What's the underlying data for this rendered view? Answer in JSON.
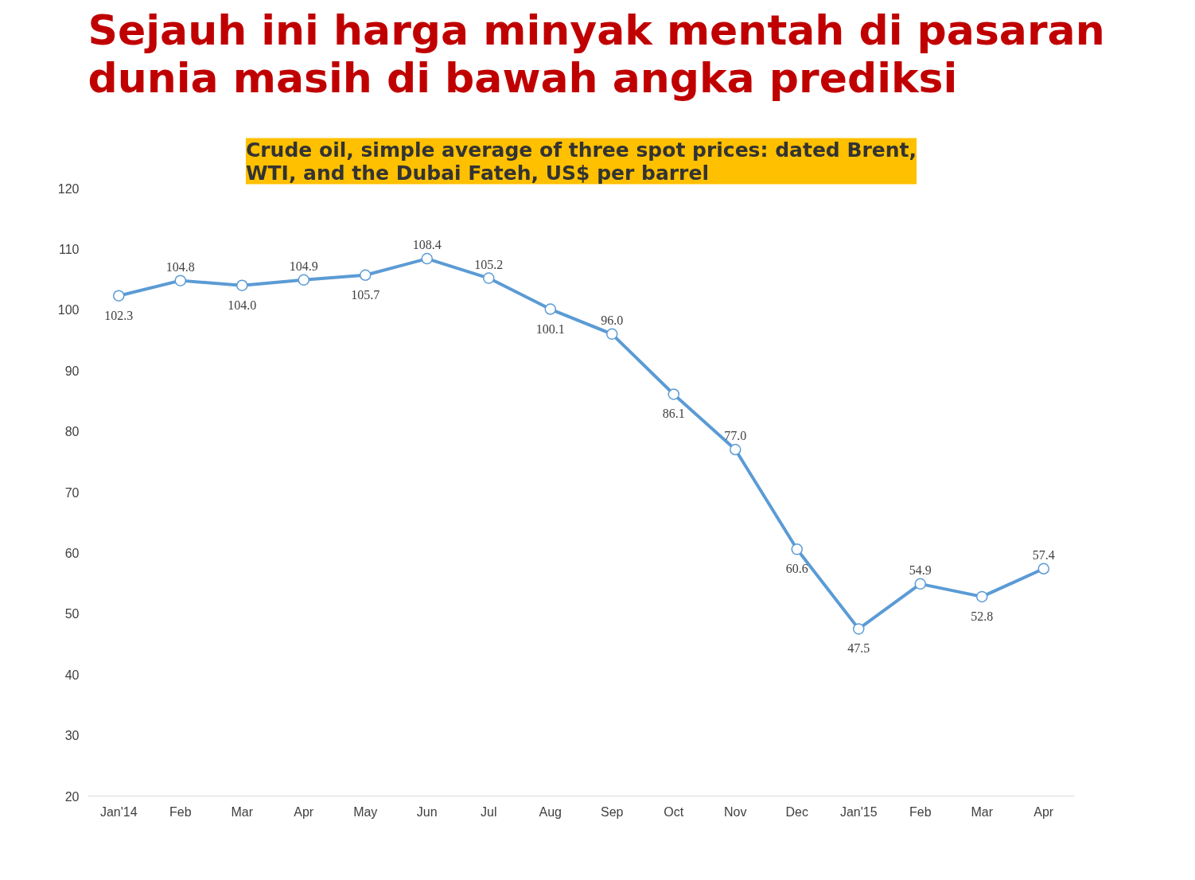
{
  "chart_data": {
    "type": "line",
    "title": "Sejauh ini harga minyak mentah di pasaran dunia masih di bawah angka prediksi",
    "subtitle": "Crude oil, simple average of three spot prices: dated Brent, WTI, and the Dubai Fateh, US$ per barrel",
    "categories": [
      "Jan'14",
      "Feb",
      "Mar",
      "Apr",
      "May",
      "Jun",
      "Jul",
      "Aug",
      "Sep",
      "Oct",
      "Nov",
      "Dec",
      "Jan'15",
      "Feb",
      "Mar",
      "Apr"
    ],
    "series": [
      {
        "color": "#5b9bd5",
        "values": [
          102.3,
          104.8,
          104.0,
          104.9,
          105.7,
          108.4,
          105.2,
          100.1,
          96.0,
          86.1,
          77.0,
          60.6,
          47.5,
          54.9,
          52.8,
          57.4
        ]
      }
    ],
    "ylim": [
      20,
      120
    ],
    "yticks": [
      20,
      30,
      40,
      50,
      60,
      70,
      80,
      90,
      100,
      110,
      120
    ],
    "grid": false,
    "marker": "circle",
    "line_style": "solid",
    "value_labels": [
      "102.3",
      "104.8",
      "104.0",
      "104.9",
      "105.7",
      "108.4",
      "105.2",
      "100.1",
      "96.0",
      "86.1",
      "77.0",
      "60.6",
      "47.5",
      "54.9",
      "52.8",
      "57.4"
    ]
  }
}
